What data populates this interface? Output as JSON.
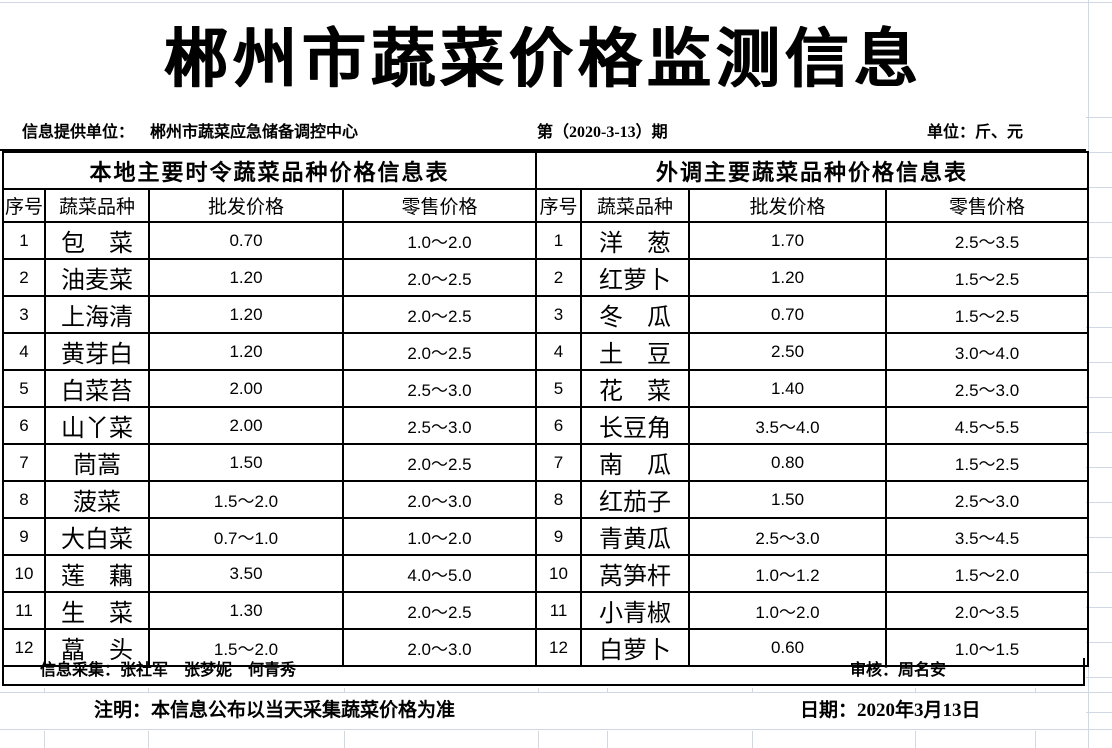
{
  "title": "郴州市蔬菜价格监测信息",
  "info_bar": {
    "provider_label": "信息提供单位：",
    "provider": "郴州市蔬菜应急储备调控中心",
    "issue": "第（2020-3-13）期",
    "unit": "单位：斤、元"
  },
  "tables": {
    "local": {
      "title": "本地主要时令蔬菜品种价格信息表",
      "columns": [
        "序号",
        "蔬菜品种",
        "批发价格",
        "零售价格"
      ],
      "rows": [
        [
          "1",
          "包　菜",
          "0.70",
          "1.0～2.0"
        ],
        [
          "2",
          "油麦菜",
          "1.20",
          "2.0～2.5"
        ],
        [
          "3",
          "上海清",
          "1.20",
          "2.0～2.5"
        ],
        [
          "4",
          "黄芽白",
          "1.20",
          "2.0～2.5"
        ],
        [
          "5",
          "白菜苔",
          "2.00",
          "2.5～3.0"
        ],
        [
          "6",
          "山丫菜",
          "2.00",
          "2.5～3.0"
        ],
        [
          "7",
          "茼蒿",
          "1.50",
          "2.0～2.5"
        ],
        [
          "8",
          "菠菜",
          "1.5～2.0",
          "2.0～3.0"
        ],
        [
          "9",
          "大白菜",
          "0.7～1.0",
          "1.0～2.0"
        ],
        [
          "10",
          "莲　藕",
          "3.50",
          "4.0～5.0"
        ],
        [
          "11",
          "生　菜",
          "1.30",
          "2.0～2.5"
        ],
        [
          "12",
          "藠　头",
          "1.5～2.0",
          "2.0～3.0"
        ]
      ]
    },
    "nonlocal": {
      "title": "外调主要蔬菜品种价格信息表",
      "columns": [
        "序号",
        "蔬菜品种",
        "批发价格",
        "零售价格"
      ],
      "rows": [
        [
          "1",
          "洋　葱",
          "1.70",
          "2.5～3.5"
        ],
        [
          "2",
          "红萝卜",
          "1.20",
          "1.5～2.5"
        ],
        [
          "3",
          "冬　瓜",
          "0.70",
          "1.5～2.5"
        ],
        [
          "4",
          "土　豆",
          "2.50",
          "3.0～4.0"
        ],
        [
          "5",
          "花　菜",
          "1.40",
          "2.5～3.0"
        ],
        [
          "6",
          "长豆角",
          "3.5～4.0",
          "4.5～5.5"
        ],
        [
          "7",
          "南　瓜",
          "0.80",
          "1.5～2.5"
        ],
        [
          "8",
          "红茄子",
          "1.50",
          "2.5～3.0"
        ],
        [
          "9",
          "青黄瓜",
          "2.5～3.0",
          "3.5～4.5"
        ],
        [
          "10",
          "莴笋杆",
          "1.0～1.2",
          "1.5～2.0"
        ],
        [
          "11",
          "小青椒",
          "1.0～2.0",
          "2.0～3.5"
        ],
        [
          "12",
          "白萝卜",
          "0.60",
          "1.0～1.5"
        ]
      ]
    }
  },
  "footer": {
    "collectors": "信息采集：张社军　张梦妮　何青秀",
    "reviewer": "审核：周名安",
    "note": "注明：本信息公布以当天采集蔬菜价格为准",
    "date": "日期：2020年3月13日"
  },
  "colors": {
    "text": "#000000",
    "border": "#000000",
    "gridline": "#d0d7e5",
    "background": "#ffffff"
  }
}
